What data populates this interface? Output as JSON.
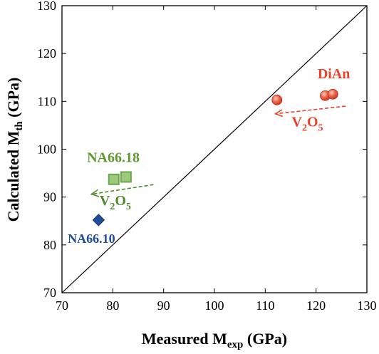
{
  "chart_data": {
    "type": "scatter",
    "xlabel": {
      "main": "Measured M",
      "sub": "exp",
      "unit": " (GPa)"
    },
    "ylabel": {
      "main": "Calculated M",
      "sub": "th",
      "unit": " (GPa)"
    },
    "xlim": [
      70,
      130
    ],
    "ylim": [
      70,
      130
    ],
    "xticks": [
      70,
      80,
      90,
      100,
      110,
      120,
      130
    ],
    "yticks": [
      70,
      80,
      90,
      100,
      110,
      120,
      130
    ],
    "grid": false,
    "reference_line": {
      "from": [
        70,
        70
      ],
      "to": [
        130,
        130
      ],
      "color": "#000000"
    },
    "series": [
      {
        "name": "DiAn",
        "color": "#e8432e",
        "marker": "sphere",
        "points": [
          [
            112.3,
            110.3
          ],
          [
            121.8,
            111.2
          ],
          [
            123.3,
            111.5
          ]
        ]
      },
      {
        "name": "NA66.18",
        "color": "#6aa84f",
        "marker": "square",
        "points": [
          [
            80.2,
            93.7
          ],
          [
            82.6,
            94.2
          ]
        ]
      },
      {
        "name": "NA66.10",
        "color": "#1f4e9a",
        "marker": "diamond",
        "points": [
          [
            77.2,
            85.2
          ]
        ]
      }
    ],
    "annotations": [
      {
        "series": "DiAn",
        "label": "DiAn",
        "color": "#e8432e",
        "at": [
          123.5,
          114.8
        ],
        "anchor": "middle",
        "size": 20
      },
      {
        "series": "NA66.18",
        "label": "NA66.18",
        "color": "#5c9a2e",
        "at": [
          80.1,
          97.3
        ],
        "anchor": "middle",
        "size": 20
      },
      {
        "series": "NA66.10",
        "label": "NA66.10",
        "color": "#1f4e9a",
        "at": [
          75.8,
          80.4
        ],
        "anchor": "middle",
        "size": 18
      }
    ],
    "arrows": [
      {
        "series": "DiAn",
        "from": [
          125.8,
          109.0
        ],
        "to": [
          112.0,
          107.4
        ],
        "color": "#e8432e",
        "label": {
          "main": "V",
          "sub1": "2",
          "mid": "O",
          "sub2": "5"
        },
        "label_at": [
          118.3,
          104.8
        ]
      },
      {
        "series": "NA66.18",
        "from": [
          88.0,
          92.6
        ],
        "to": [
          75.8,
          90.6
        ],
        "color": "#4f8a2a",
        "label": {
          "main": "V",
          "sub1": "2",
          "mid": "O",
          "sub2": "5"
        },
        "label_at": [
          80.5,
          88.3
        ]
      }
    ]
  }
}
